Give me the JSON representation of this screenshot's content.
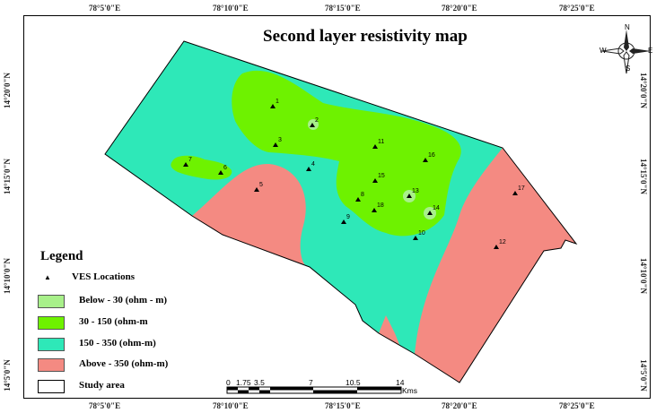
{
  "title": "Second layer resistivity map",
  "top_coords": [
    "78°5'0\"E",
    "78°10'0\"E",
    "78°15'0\"E",
    "78°20'0\"E",
    "78°25'0\"E"
  ],
  "bottom_coords": [
    "78°5'0\"E",
    "78°10'0\"E",
    "78°15'0\"E",
    "78°20'0\"E",
    "78°25'0\"E"
  ],
  "left_coords": [
    "14°20'0\"N",
    "14°15'0\"N",
    "14°10'0\"N",
    "14°5'0\"N"
  ],
  "right_coords": [
    "14°20'0\"N",
    "14°15'0\"N",
    "14°10'0\"N",
    "14°5'0\"N"
  ],
  "legend": {
    "title": "Legend",
    "ves_label": "VES Locations",
    "classes": [
      {
        "label": "Below - 30 (ohm - m)",
        "color": "#a8f08a"
      },
      {
        "label": "30 - 150 (ohm-m",
        "color": "#6ef200"
      },
      {
        "label": "150 - 350 (ohm-m)",
        "color": "#2ee8b8"
      },
      {
        "label": "Above - 350 (ohm-m)",
        "color": "#f48a82"
      },
      {
        "label": "Study area",
        "color": "#ffffff"
      }
    ]
  },
  "scale_bar": {
    "labels": [
      "0",
      "1.75",
      "3.5",
      "7",
      "10.5",
      "14"
    ],
    "unit": "Kms"
  },
  "compass": {
    "n": "N",
    "s": "S",
    "e": "E",
    "w": "W"
  },
  "ves_points": [
    "1",
    "2",
    "3",
    "4",
    "5",
    "6",
    "7",
    "8",
    "9",
    "10",
    "11",
    "12",
    "13",
    "14",
    "15",
    "16",
    "17",
    "18"
  ]
}
